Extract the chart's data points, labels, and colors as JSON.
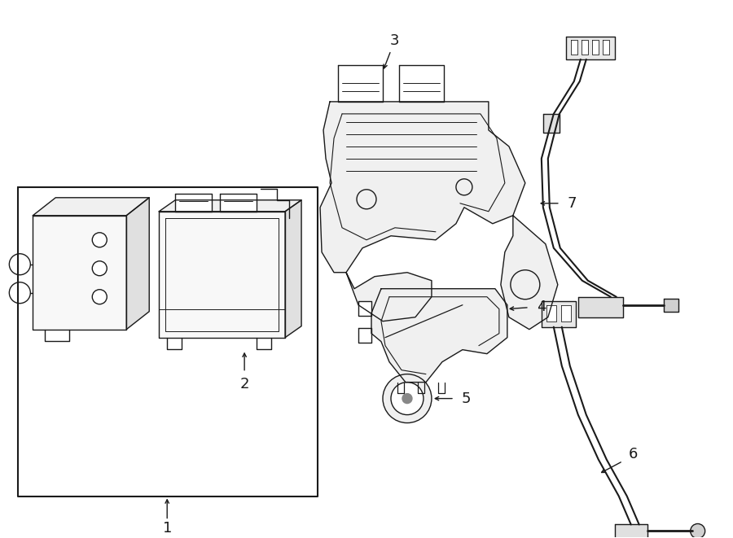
{
  "bg_color": "#ffffff",
  "lc": "#1a1a1a",
  "lw": 1.0,
  "fig_w": 9.0,
  "fig_h": 6.61,
  "dpi": 100
}
